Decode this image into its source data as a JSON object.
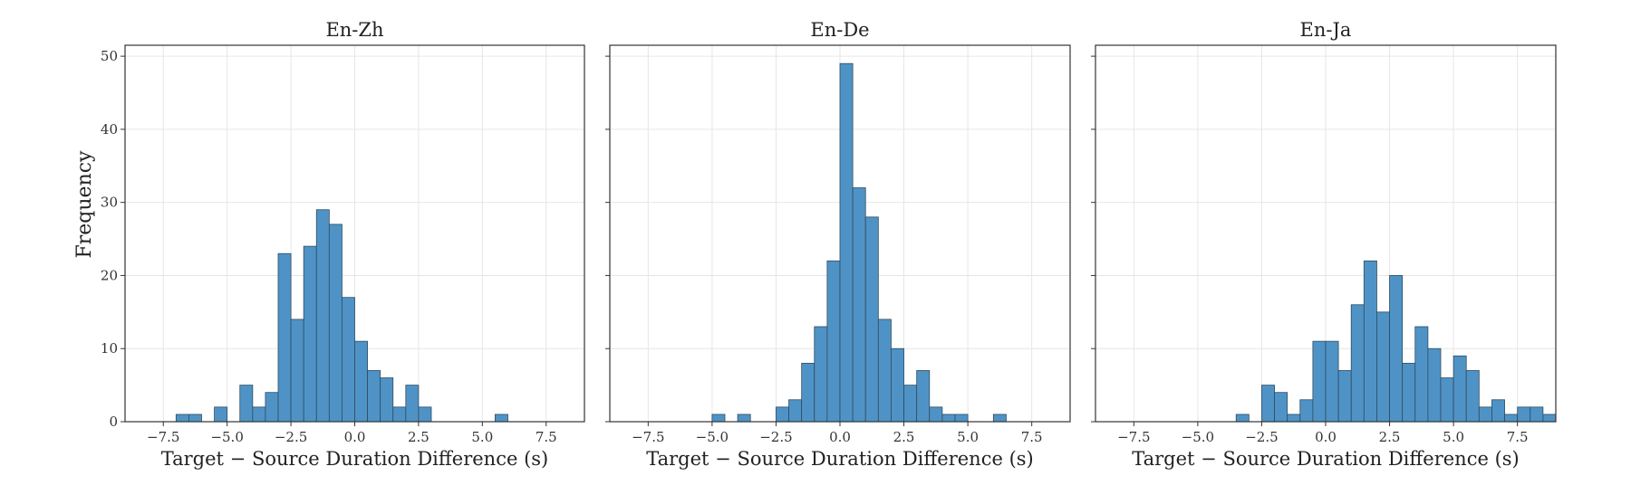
{
  "figure": {
    "ylabel": "Frequency"
  },
  "chart_data": [
    {
      "type": "bar",
      "title": "En-Zh",
      "xlabel": "Target − Source Duration Difference (s)",
      "ylabel": "Frequency",
      "xlim": [
        -9,
        9
      ],
      "ylim": [
        0,
        51.5
      ],
      "xticks": [
        -7.5,
        -5.0,
        -2.5,
        0.0,
        2.5,
        5.0,
        7.5
      ],
      "xtick_labels": [
        "−7.5",
        "−5.0",
        "−2.5",
        "0.0",
        "2.5",
        "5.0",
        "7.5"
      ],
      "yticks": [
        0,
        10,
        20,
        30,
        40,
        50
      ],
      "ytick_labels": [
        "0",
        "10",
        "20",
        "30",
        "40",
        "50"
      ],
      "grid": true,
      "bar_color": "#4f93c6",
      "bin_width": 0.5,
      "x": [
        -7.0,
        -6.5,
        -6.0,
        -5.5,
        -5.0,
        -4.5,
        -4.0,
        -3.5,
        -3.0,
        -2.5,
        -2.0,
        -1.5,
        -1.0,
        -0.5,
        0.0,
        0.5,
        1.0,
        1.5,
        2.0,
        2.5,
        3.0,
        3.5,
        4.0,
        4.5,
        5.0,
        5.5,
        6.0
      ],
      "values": [
        1,
        1,
        0,
        2,
        0,
        5,
        2,
        4,
        23,
        14,
        24,
        29,
        27,
        17,
        11,
        7,
        6,
        2,
        5,
        2,
        0,
        0,
        0,
        0,
        0,
        1,
        0
      ]
    },
    {
      "type": "bar",
      "title": "En-De",
      "xlabel": "Target − Source Duration Difference (s)",
      "xlim": [
        -9,
        9
      ],
      "ylim": [
        0,
        51.5
      ],
      "xticks": [
        -7.5,
        -5.0,
        -2.5,
        0.0,
        2.5,
        5.0,
        7.5
      ],
      "xtick_labels": [
        "−7.5",
        "−5.0",
        "−2.5",
        "0.0",
        "2.5",
        "5.0",
        "7.5"
      ],
      "yticks": [
        0,
        10,
        20,
        30,
        40,
        50
      ],
      "grid": true,
      "bar_color": "#4f93c6",
      "bin_width": 0.5,
      "x": [
        -5.0,
        -4.5,
        -4.0,
        -3.5,
        -3.0,
        -2.5,
        -2.0,
        -1.5,
        -1.0,
        -0.5,
        0.0,
        0.5,
        1.0,
        1.5,
        2.0,
        2.5,
        3.0,
        3.5,
        4.0,
        4.5,
        5.0,
        5.5,
        6.0
      ],
      "values": [
        1,
        0,
        1,
        0,
        0,
        2,
        3,
        8,
        13,
        22,
        49,
        32,
        28,
        14,
        10,
        5,
        7,
        2,
        1,
        1,
        0,
        0,
        1
      ]
    },
    {
      "type": "bar",
      "title": "En-Ja",
      "xlabel": "Target − Source Duration Difference (s)",
      "xlim": [
        -9,
        9
      ],
      "ylim": [
        0,
        51.5
      ],
      "xticks": [
        -7.5,
        -5.0,
        -2.5,
        0.0,
        2.5,
        5.0,
        7.5
      ],
      "xtick_labels": [
        "−7.5",
        "−5.0",
        "−2.5",
        "0.0",
        "2.5",
        "5.0",
        "7.5"
      ],
      "yticks": [
        0,
        10,
        20,
        30,
        40,
        50
      ],
      "grid": true,
      "bar_color": "#4f93c6",
      "bin_width": 0.5,
      "x": [
        -3.5,
        -3.0,
        -2.5,
        -2.0,
        -1.5,
        -1.0,
        -0.5,
        0.0,
        0.5,
        1.0,
        1.5,
        2.0,
        2.5,
        3.0,
        3.5,
        4.0,
        4.5,
        5.0,
        5.5,
        6.0,
        6.5,
        7.0,
        7.5,
        8.0,
        8.5
      ],
      "values": [
        1,
        0,
        5,
        4,
        1,
        3,
        11,
        11,
        7,
        16,
        22,
        15,
        20,
        8,
        13,
        10,
        6,
        9,
        7,
        2,
        3,
        1,
        2,
        2,
        1
      ]
    }
  ]
}
